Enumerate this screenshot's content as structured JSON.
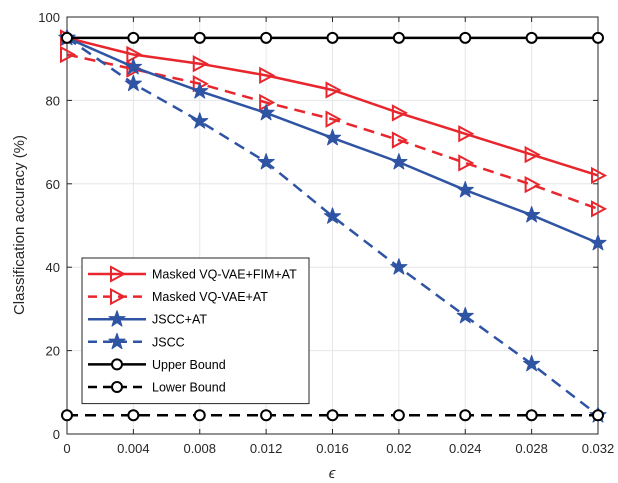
{
  "chart_data": {
    "type": "line",
    "title": "",
    "xlabel": "ϵ",
    "ylabel": "Classification accuracy (%)",
    "x": [
      0,
      0.004,
      0.008,
      0.012,
      0.016,
      0.02,
      0.024,
      0.028,
      0.032
    ],
    "x_tick_labels": [
      "0",
      "0.004",
      "0.008",
      "0.012",
      "0.016",
      "0.02",
      "0.024",
      "0.028",
      "0.032"
    ],
    "y_ticks": [
      0,
      20,
      40,
      60,
      80,
      100
    ],
    "xlim": [
      0,
      0.032
    ],
    "ylim": [
      0,
      100
    ],
    "grid": true,
    "legend_position": "lower-left",
    "series": [
      {
        "name": "Masked VQ-VAE+FIM+AT",
        "color": "#e8262d",
        "dash": "solid",
        "marker": "triangle-right",
        "values": [
          95,
          91,
          88.8,
          86,
          82.5,
          77,
          72,
          67,
          62
        ]
      },
      {
        "name": "Masked VQ-VAE+AT",
        "color": "#e8262d",
        "dash": "dashed",
        "marker": "triangle-right",
        "values": [
          91,
          87.5,
          84,
          79.5,
          75.5,
          70.5,
          65,
          59.8,
          54
        ]
      },
      {
        "name": "JSCC+AT",
        "color": "#2f54a3",
        "dash": "solid",
        "marker": "star",
        "values": [
          95,
          88,
          82.2,
          77,
          71,
          65.2,
          58.5,
          52.5,
          45.8
        ]
      },
      {
        "name": "JSCC",
        "color": "#2f54a3",
        "dash": "dashed",
        "marker": "star",
        "values": [
          95,
          84,
          75,
          65.2,
          52.2,
          40,
          28.3,
          16.8,
          4.5
        ]
      },
      {
        "name": "Upper Bound",
        "color": "#000000",
        "dash": "solid",
        "marker": "circle",
        "values": [
          95,
          95,
          95,
          95,
          95,
          95,
          95,
          95,
          95
        ]
      },
      {
        "name": "Lower Bound",
        "color": "#000000",
        "dash": "dashed",
        "marker": "circle",
        "values": [
          4.5,
          4.5,
          4.5,
          4.5,
          4.5,
          4.5,
          4.5,
          4.5,
          4.5
        ]
      }
    ]
  }
}
